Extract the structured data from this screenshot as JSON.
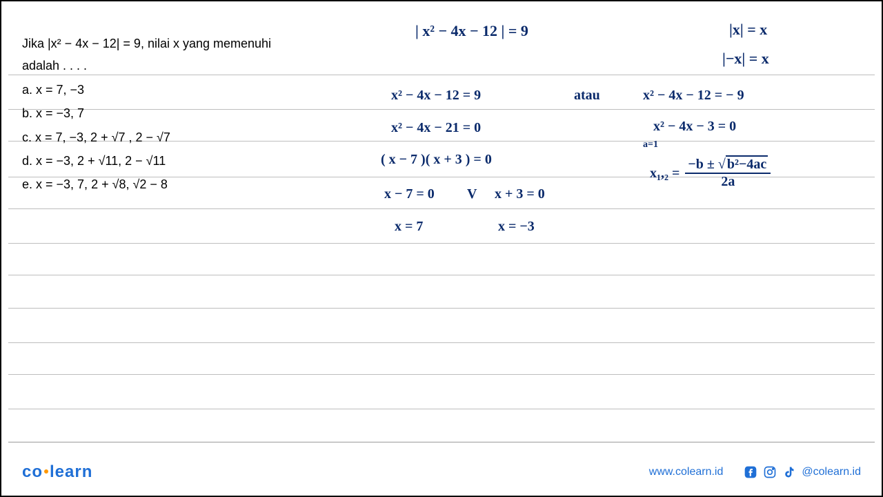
{
  "lines_y": [
    106,
    156,
    202,
    254,
    300,
    350,
    396,
    444,
    494,
    540,
    590,
    638
  ],
  "question": {
    "line1": "Jika  |x² − 4x − 12| = 9, nilai x yang memenuhi",
    "line2": "adalah . . . .",
    "options": {
      "a": "a.    x = 7, −3",
      "b": "b.    x = −3, 7",
      "c": "c.    x = 7, −3, 2 + √7 , 2 − √7",
      "d": "d.    x = −3, 2 + √11, 2 − √11",
      "e": "e.    x = −3, 7, 2 + √8, √2 − 8"
    }
  },
  "handwriting": {
    "title_eq": "| x² − 4x − 12 |  =  9",
    "abs_rule1": "|x|  =  x",
    "abs_rule2": "|−x|  =  x",
    "left_col": {
      "l1": "x² − 4x − 12  =  9",
      "l2": "x² − 4x − 21  =  0",
      "l3": "( x − 7 )( x + 3 )  =  0",
      "l4a": "x − 7 = 0",
      "l4v": "V",
      "l4b": "x + 3 = 0",
      "l5a": "x = 7",
      "l5b": "x = −3"
    },
    "atau": "atau",
    "right_col": {
      "r1": "x² − 4x − 12  =  − 9",
      "r2": "x² − 4x  − 3  =  0",
      "a1": "a=1",
      "formula_x": "x₁,₂ =",
      "formula_num": "−b ± √(b² − 4ac)",
      "formula_den": "2a"
    }
  },
  "footer": {
    "brand_left": "co",
    "brand_right": "learn",
    "url": "www.colearn.id",
    "handle": "@colearn.id"
  },
  "colors": {
    "ink": "#0a2a6b",
    "brand": "#1f6fd6",
    "accent": "#ff9800",
    "ruled_line": "#bdbdbd"
  }
}
